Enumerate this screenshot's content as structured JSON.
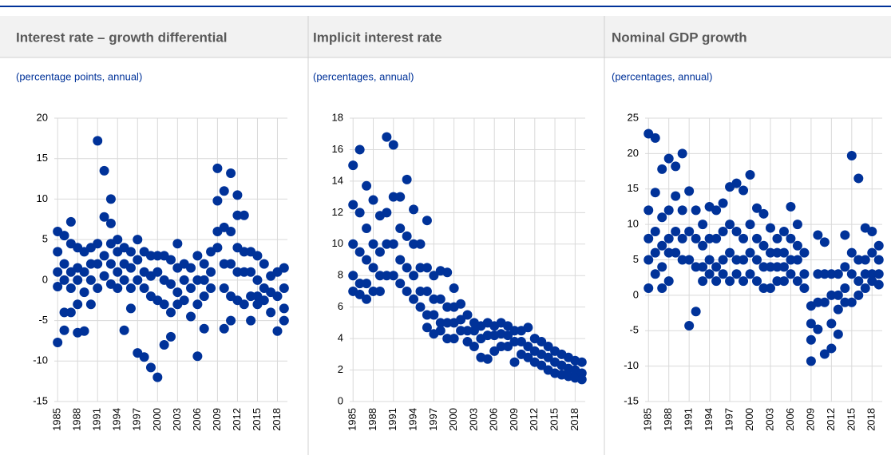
{
  "chart_data": [
    {
      "type": "scatter",
      "title": "Interest rate – growth differential",
      "subtitle": "(percentage points, annual)",
      "color": "#003299",
      "xlim": [
        1984.5,
        2019.5
      ],
      "xticks": [
        1985,
        1988,
        1991,
        1994,
        1997,
        2000,
        2003,
        2006,
        2009,
        2012,
        2015,
        2018
      ],
      "ylim": [
        -15,
        20
      ],
      "yticks": [
        -15,
        -10,
        -5,
        0,
        5,
        10,
        15,
        20
      ],
      "grid": true,
      "x": [
        1985,
        1985,
        1985,
        1985,
        1985,
        1986,
        1986,
        1986,
        1986,
        1986,
        1987,
        1987,
        1987,
        1987,
        1987,
        1988,
        1988,
        1988,
        1988,
        1988,
        1989,
        1989,
        1989,
        1989,
        1990,
        1990,
        1990,
        1990,
        1991,
        1991,
        1991,
        1991,
        1992,
        1992,
        1992,
        1992,
        1993,
        1993,
        1993,
        1993,
        1993,
        1994,
        1994,
        1994,
        1994,
        1995,
        1995,
        1995,
        1995,
        1996,
        1996,
        1996,
        1996,
        1997,
        1997,
        1997,
        1997,
        1998,
        1998,
        1998,
        1998,
        1999,
        1999,
        1999,
        1999,
        2000,
        2000,
        2000,
        2000,
        2001,
        2001,
        2001,
        2001,
        2002,
        2002,
        2002,
        2002,
        2003,
        2003,
        2003,
        2003,
        2004,
        2004,
        2004,
        2005,
        2005,
        2005,
        2006,
        2006,
        2006,
        2006,
        2007,
        2007,
        2007,
        2007,
        2008,
        2008,
        2008,
        2009,
        2009,
        2009,
        2009,
        2010,
        2010,
        2010,
        2010,
        2010,
        2011,
        2011,
        2011,
        2011,
        2011,
        2012,
        2012,
        2012,
        2012,
        2012,
        2013,
        2013,
        2013,
        2013,
        2014,
        2014,
        2014,
        2014,
        2015,
        2015,
        2015,
        2015,
        2016,
        2016,
        2016,
        2017,
        2017,
        2017,
        2018,
        2018,
        2018,
        2019,
        2019,
        2019,
        2019
      ],
      "values": [
        6,
        3.5,
        1,
        -0.8,
        -7.7,
        5.5,
        2,
        0,
        -4,
        -6.2,
        7.2,
        4.5,
        1,
        -1,
        -4,
        4,
        1.5,
        0,
        -3,
        -6.5,
        3.5,
        1,
        -1.5,
        -6.3,
        4,
        2,
        0,
        -3,
        17.2,
        4.5,
        2,
        -1,
        13.5,
        7.8,
        3,
        0.5,
        10,
        7,
        4.5,
        2,
        -0.5,
        5,
        3.5,
        1,
        -1,
        4,
        2,
        0,
        -6.2,
        3.5,
        1.5,
        -1,
        -3.5,
        5,
        2.5,
        0,
        -9,
        3.5,
        1,
        -1,
        -9.5,
        3,
        0.5,
        -2,
        -10.8,
        3,
        1,
        -2.5,
        -12,
        3,
        0,
        -3,
        -8,
        2.5,
        -0.5,
        -4,
        -7,
        4.5,
        1.5,
        -1.5,
        -3,
        2,
        0,
        -2.5,
        1.5,
        -1,
        -4.5,
        3,
        0,
        -3,
        -9.4,
        2,
        0,
        -2,
        -6,
        3.5,
        1,
        -1,
        13.8,
        9.8,
        6,
        4,
        11,
        6.5,
        2,
        -1,
        -6,
        13.2,
        6,
        2,
        -2,
        -5,
        10.5,
        8,
        4,
        1,
        -2.5,
        8,
        3.5,
        1,
        -3,
        3.5,
        1,
        -2,
        -5,
        3,
        0,
        -2,
        -3,
        2,
        -1,
        -2.5,
        0.5,
        -1.5,
        -4,
        1,
        -2,
        -6.3,
        1.5,
        -1,
        -3.5,
        -5
      ]
    },
    {
      "type": "scatter",
      "title": "Implicit interest rate",
      "subtitle": "(percentages, annual)",
      "color": "#003299",
      "xlim": [
        1984.5,
        2019.5
      ],
      "xticks": [
        1985,
        1988,
        1991,
        1994,
        1997,
        2000,
        2003,
        2006,
        2009,
        2012,
        2015,
        2018
      ],
      "ylim": [
        0,
        18
      ],
      "yticks": [
        0,
        2,
        4,
        6,
        8,
        10,
        12,
        14,
        16,
        18
      ],
      "grid": true,
      "x": [
        1985,
        1985,
        1985,
        1985,
        1985,
        1986,
        1986,
        1986,
        1986,
        1986,
        1987,
        1987,
        1987,
        1987,
        1987,
        1988,
        1988,
        1988,
        1988,
        1989,
        1989,
        1989,
        1989,
        1990,
        1990,
        1990,
        1990,
        1991,
        1991,
        1991,
        1991,
        1992,
        1992,
        1992,
        1992,
        1993,
        1993,
        1993,
        1993,
        1994,
        1994,
        1994,
        1994,
        1995,
        1995,
        1995,
        1995,
        1996,
        1996,
        1996,
        1996,
        1996,
        1997,
        1997,
        1997,
        1997,
        1998,
        1998,
        1998,
        1998,
        1999,
        1999,
        1999,
        1999,
        2000,
        2000,
        2000,
        2000,
        2001,
        2001,
        2001,
        2002,
        2002,
        2002,
        2003,
        2003,
        2003,
        2004,
        2004,
        2004,
        2005,
        2005,
        2005,
        2006,
        2006,
        2006,
        2007,
        2007,
        2007,
        2008,
        2008,
        2008,
        2009,
        2009,
        2009,
        2010,
        2010,
        2010,
        2011,
        2011,
        2011,
        2012,
        2012,
        2012,
        2013,
        2013,
        2013,
        2014,
        2014,
        2014,
        2015,
        2015,
        2015,
        2016,
        2016,
        2016,
        2017,
        2017,
        2017,
        2018,
        2018,
        2018,
        2019,
        2019,
        2019
      ],
      "values": [
        15,
        12.5,
        10,
        8,
        7,
        16,
        12,
        9.5,
        7.5,
        6.8,
        13.7,
        11,
        9,
        7.5,
        6.5,
        12.8,
        10,
        8.5,
        7,
        11.8,
        9.5,
        8,
        7,
        16.8,
        12,
        10,
        8,
        16.3,
        13,
        10,
        8,
        13,
        11,
        9,
        7.5,
        14.1,
        10.5,
        8.5,
        7,
        12.2,
        10,
        8,
        6.5,
        10,
        8.5,
        7,
        6,
        11.5,
        8.5,
        7,
        5.5,
        4.7,
        8,
        6.5,
        5.5,
        4.3,
        8.3,
        6.5,
        5,
        4.5,
        8.2,
        6,
        5,
        4,
        7.2,
        6,
        5,
        4,
        6.2,
        5.2,
        4.5,
        5.5,
        4.5,
        3.8,
        5,
        4.5,
        3.5,
        4.8,
        4,
        2.8,
        5,
        4.2,
        2.7,
        4.8,
        4.2,
        3.2,
        5,
        4.3,
        3.5,
        4.8,
        4.2,
        3.5,
        4.5,
        3.8,
        2.5,
        4.5,
        3.8,
        3,
        4.7,
        3.5,
        2.8,
        4,
        3.2,
        2.5,
        3.8,
        3,
        2.3,
        3.5,
        2.8,
        2,
        3.2,
        2.5,
        1.8,
        3,
        2.3,
        1.7,
        2.8,
        2.1,
        1.6,
        2.6,
        2,
        1.5,
        2.5,
        1.8,
        1.4
      ]
    },
    {
      "type": "scatter",
      "title": "Nominal GDP growth",
      "subtitle": "(percentages, annual)",
      "color": "#003299",
      "xlim": [
        1984.5,
        2019.5
      ],
      "xticks": [
        1985,
        1988,
        1991,
        1994,
        1997,
        2000,
        2003,
        2006,
        2009,
        2012,
        2015,
        2018
      ],
      "ylim": [
        -15,
        25
      ],
      "yticks": [
        -15,
        -10,
        -5,
        0,
        5,
        10,
        15,
        20,
        25
      ],
      "grid": true,
      "x": [
        1985,
        1985,
        1985,
        1985,
        1985,
        1986,
        1986,
        1986,
        1986,
        1986,
        1987,
        1987,
        1987,
        1987,
        1987,
        1988,
        1988,
        1988,
        1988,
        1988,
        1989,
        1989,
        1989,
        1989,
        1990,
        1990,
        1990,
        1990,
        1991,
        1991,
        1991,
        1991,
        1992,
        1992,
        1992,
        1992,
        1993,
        1993,
        1993,
        1993,
        1994,
        1994,
        1994,
        1994,
        1995,
        1995,
        1995,
        1995,
        1996,
        1996,
        1996,
        1996,
        1997,
        1997,
        1997,
        1997,
        1998,
        1998,
        1998,
        1998,
        1999,
        1999,
        1999,
        1999,
        2000,
        2000,
        2000,
        2000,
        2001,
        2001,
        2001,
        2001,
        2002,
        2002,
        2002,
        2002,
        2003,
        2003,
        2003,
        2003,
        2004,
        2004,
        2004,
        2004,
        2005,
        2005,
        2005,
        2005,
        2006,
        2006,
        2006,
        2006,
        2007,
        2007,
        2007,
        2007,
        2008,
        2008,
        2008,
        2009,
        2009,
        2009,
        2009,
        2010,
        2010,
        2010,
        2010,
        2011,
        2011,
        2011,
        2011,
        2012,
        2012,
        2012,
        2012,
        2013,
        2013,
        2013,
        2013,
        2014,
        2014,
        2014,
        2014,
        2015,
        2015,
        2015,
        2015,
        2016,
        2016,
        2016,
        2016,
        2017,
        2017,
        2017,
        2017,
        2018,
        2018,
        2018,
        2018,
        2019,
        2019,
        2019,
        2019
      ],
      "values": [
        22.8,
        12,
        8,
        5,
        1,
        22.2,
        14.5,
        9,
        6,
        3,
        17.8,
        11,
        7,
        4,
        1,
        19.3,
        12,
        8,
        6,
        2,
        18.2,
        14,
        9,
        6,
        20,
        12,
        8,
        5,
        14.7,
        9,
        5,
        -4.3,
        12,
        8,
        4,
        -2.3,
        10,
        7,
        4,
        2,
        12.5,
        8,
        5,
        3,
        12,
        8,
        4,
        2,
        13,
        9,
        5,
        3,
        15.3,
        10,
        6,
        2,
        15.8,
        9,
        5,
        3,
        14.8,
        8,
        5,
        2,
        17,
        10,
        6,
        3,
        12.3,
        8,
        5,
        2,
        11.5,
        7,
        4,
        1,
        9.5,
        6,
        4,
        1,
        8,
        6,
        4,
        2,
        9,
        6,
        4,
        2,
        12.5,
        8,
        5,
        3,
        10,
        7,
        5,
        2,
        6,
        3,
        1,
        -1.5,
        -4,
        -6.3,
        -9.3,
        8.5,
        3,
        -1,
        -4.8,
        7.5,
        3,
        -1,
        -8.3,
        3,
        0,
        -4,
        -7.5,
        3,
        0,
        -2,
        -5.5,
        8.5,
        4,
        1,
        -1,
        19.7,
        6,
        3,
        -1,
        16.5,
        5,
        2,
        0,
        9.5,
        5,
        3,
        1,
        9,
        6,
        3,
        2,
        7,
        5,
        3,
        1.5
      ]
    }
  ]
}
